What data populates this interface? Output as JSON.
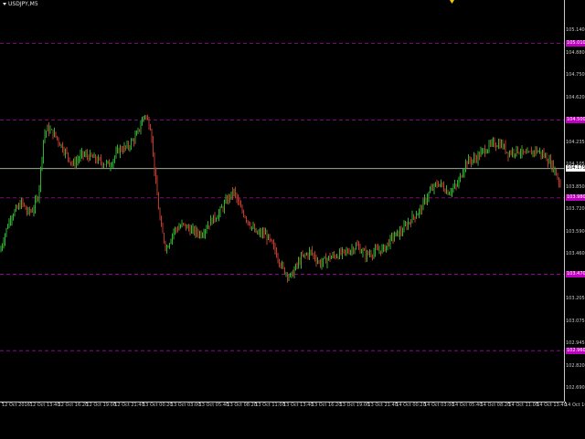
{
  "window": {
    "symbol_label": "USDJPY,M5",
    "colors": {
      "background": "#000000",
      "axis": "#c8c8c8",
      "bull_candle": "#2fb12f",
      "bear_candle": "#c0392b",
      "level_line": "#b000b0",
      "level_tag": "#c000c0",
      "bid_line": "#b8c8b0",
      "marker": "#f0c800"
    }
  },
  "price_axis": {
    "ticks": [
      "105.140",
      "104.880",
      "104.750",
      "104.620",
      "104.365",
      "104.235",
      "104.105",
      "103.850",
      "103.720",
      "103.590",
      "103.460",
      "103.335",
      "103.205",
      "103.075",
      "102.945",
      "102.820",
      "102.690"
    ],
    "bid_tag": "104.175",
    "level_tags": [
      "105.010",
      "104.500",
      "103.980",
      "103.470",
      "102.960"
    ]
  },
  "time_axis": {
    "ticks": [
      "12 Oct 2016",
      "12 Oct 13:40",
      "12 Oct 16:20",
      "12 Oct 19:00",
      "12 Oct 21:40",
      "13 Oct 00:20",
      "13 Oct 03:00",
      "13 Oct 05:40",
      "13 Oct 08:20",
      "13 Oct 11:00",
      "13 Oct 13:40",
      "13 Oct 16:20",
      "13 Oct 19:00",
      "13 Oct 21:40",
      "14 Oct 00:20",
      "14 Oct 03:00",
      "14 Oct 05:40",
      "14 Oct 08:20",
      "14 Oct 11:00",
      "14 Oct 13:40",
      "14 Oct 16:2"
    ]
  },
  "chart_data": {
    "type": "candlestick",
    "symbol": "USDJPY",
    "timeframe": "M5",
    "ylim": [
      102.62,
      105.3
    ],
    "horizontal_levels": [
      105.01,
      104.5,
      103.98,
      103.47,
      102.96
    ],
    "bid": 104.175,
    "close_path": [
      {
        "t": 0,
        "p": 103.62
      },
      {
        "t": 6,
        "p": 103.75
      },
      {
        "t": 12,
        "p": 103.86
      },
      {
        "t": 18,
        "p": 103.9
      },
      {
        "t": 24,
        "p": 103.95
      },
      {
        "t": 30,
        "p": 103.88
      },
      {
        "t": 36,
        "p": 103.9
      },
      {
        "t": 42,
        "p": 104.0
      },
      {
        "t": 48,
        "p": 104.4
      },
      {
        "t": 52,
        "p": 104.44
      },
      {
        "t": 60,
        "p": 104.4
      },
      {
        "t": 70,
        "p": 104.3
      },
      {
        "t": 80,
        "p": 104.2
      },
      {
        "t": 90,
        "p": 104.27
      },
      {
        "t": 100,
        "p": 104.25
      },
      {
        "t": 110,
        "p": 104.22
      },
      {
        "t": 120,
        "p": 104.2
      },
      {
        "t": 130,
        "p": 104.3
      },
      {
        "t": 140,
        "p": 104.32
      },
      {
        "t": 150,
        "p": 104.4
      },
      {
        "t": 158,
        "p": 104.54
      },
      {
        "t": 165,
        "p": 104.45
      },
      {
        "t": 170,
        "p": 104.1
      },
      {
        "t": 176,
        "p": 103.78
      },
      {
        "t": 182,
        "p": 103.64
      },
      {
        "t": 190,
        "p": 103.76
      },
      {
        "t": 200,
        "p": 103.8
      },
      {
        "t": 210,
        "p": 103.76
      },
      {
        "t": 220,
        "p": 103.74
      },
      {
        "t": 230,
        "p": 103.82
      },
      {
        "t": 240,
        "p": 103.88
      },
      {
        "t": 250,
        "p": 103.98
      },
      {
        "t": 256,
        "p": 104.02
      },
      {
        "t": 262,
        "p": 103.92
      },
      {
        "t": 270,
        "p": 103.84
      },
      {
        "t": 280,
        "p": 103.74
      },
      {
        "t": 290,
        "p": 103.74
      },
      {
        "t": 300,
        "p": 103.64
      },
      {
        "t": 310,
        "p": 103.5
      },
      {
        "t": 318,
        "p": 103.45
      },
      {
        "t": 324,
        "p": 103.52
      },
      {
        "t": 330,
        "p": 103.58
      },
      {
        "t": 340,
        "p": 103.62
      },
      {
        "t": 350,
        "p": 103.54
      },
      {
        "t": 360,
        "p": 103.58
      },
      {
        "t": 370,
        "p": 103.6
      },
      {
        "t": 380,
        "p": 103.62
      },
      {
        "t": 390,
        "p": 103.66
      },
      {
        "t": 400,
        "p": 103.6
      },
      {
        "t": 410,
        "p": 103.62
      },
      {
        "t": 420,
        "p": 103.64
      },
      {
        "t": 430,
        "p": 103.72
      },
      {
        "t": 440,
        "p": 103.76
      },
      {
        "t": 450,
        "p": 103.84
      },
      {
        "t": 460,
        "p": 103.9
      },
      {
        "t": 470,
        "p": 104.02
      },
      {
        "t": 480,
        "p": 104.08
      },
      {
        "t": 490,
        "p": 104.02
      },
      {
        "t": 500,
        "p": 104.06
      },
      {
        "t": 510,
        "p": 104.22
      },
      {
        "t": 520,
        "p": 104.24
      },
      {
        "t": 530,
        "p": 104.3
      },
      {
        "t": 540,
        "p": 104.34
      },
      {
        "t": 548,
        "p": 104.34
      },
      {
        "t": 556,
        "p": 104.28
      },
      {
        "t": 566,
        "p": 104.3
      },
      {
        "t": 576,
        "p": 104.26
      },
      {
        "t": 586,
        "p": 104.3
      },
      {
        "t": 596,
        "p": 104.26
      },
      {
        "t": 606,
        "p": 104.18
      },
      {
        "t": 614,
        "p": 104.05
      }
    ]
  }
}
